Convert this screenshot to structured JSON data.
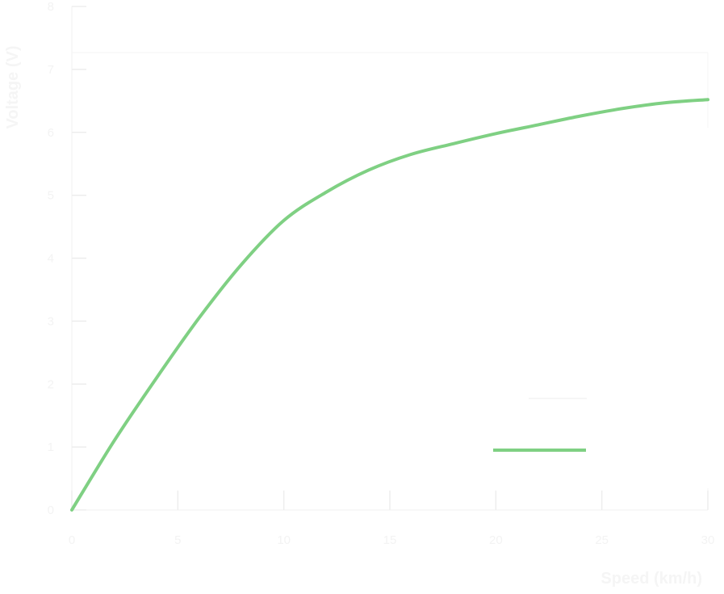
{
  "chart_data": {
    "type": "line",
    "title": "",
    "xlabel": "Speed (km/h)",
    "ylabel": "Voltage (V)",
    "xlim": [
      0,
      30
    ],
    "ylim": [
      0,
      8
    ],
    "x_ticks": [
      0,
      5,
      10,
      15,
      20,
      25,
      30
    ],
    "y_ticks": [
      0,
      1,
      2,
      3,
      4,
      5,
      6,
      7,
      8
    ],
    "grid": false,
    "legend": "bottom-right",
    "series": [
      {
        "name": "",
        "color": "#7fd083",
        "x": [
          0,
          2,
          4,
          6,
          8,
          10,
          12,
          14,
          16,
          18,
          20,
          22,
          24,
          26,
          28,
          30
        ],
        "y": [
          0,
          1.1,
          2.1,
          3.05,
          3.9,
          4.6,
          5.05,
          5.4,
          5.65,
          5.82,
          5.98,
          6.12,
          6.26,
          6.38,
          6.47,
          6.52
        ]
      }
    ]
  }
}
